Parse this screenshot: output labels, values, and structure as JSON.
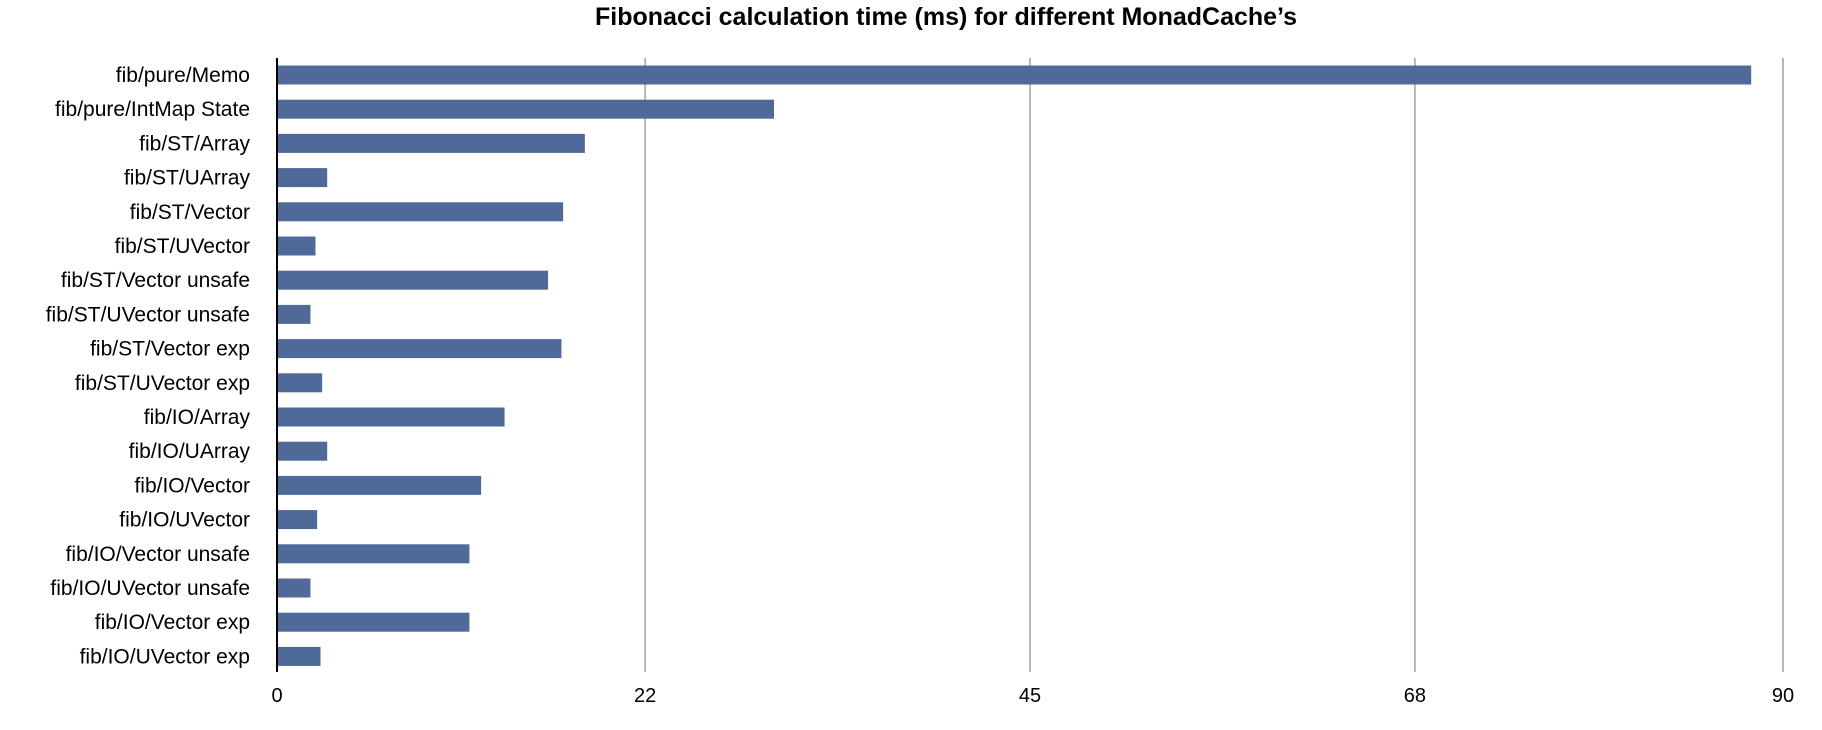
{
  "chart_data": {
    "type": "bar",
    "orientation": "horizontal",
    "title": "Fibonacci calculation time (ms) for different MonadCache’s",
    "xlabel": "",
    "ylabel": "",
    "categories": [
      "fib/pure/Memo",
      "fib/pure/IntMap State",
      "fib/ST/Array",
      "fib/ST/UArray",
      "fib/ST/Vector",
      "fib/ST/UVector",
      "fib/ST/Vector unsafe",
      "fib/ST/UVector unsafe",
      "fib/ST/Vector exp",
      "fib/ST/UVector exp",
      "fib/IO/Array",
      "fib/IO/UArray",
      "fib/IO/Vector",
      "fib/IO/UVector",
      "fib/IO/Vector unsafe",
      "fib/IO/UVector unsafe",
      "fib/IO/Vector exp",
      "fib/IO/UVector exp"
    ],
    "values": [
      88.1,
      29.7,
      18.4,
      3.0,
      17.1,
      2.3,
      16.2,
      2.0,
      17.0,
      2.7,
      13.6,
      3.0,
      12.2,
      2.4,
      11.5,
      2.0,
      11.5,
      2.6
    ],
    "xlim": [
      0,
      90
    ],
    "xticks": [
      0,
      22,
      45,
      68,
      90
    ],
    "xtick_labels": [
      "0",
      "22",
      "45",
      "68",
      "90"
    ],
    "grid": "vertical",
    "legend": "none",
    "bar_color": "#4f6a99",
    "grid_color": "#a0a0a0",
    "axis_color": "#000000"
  }
}
